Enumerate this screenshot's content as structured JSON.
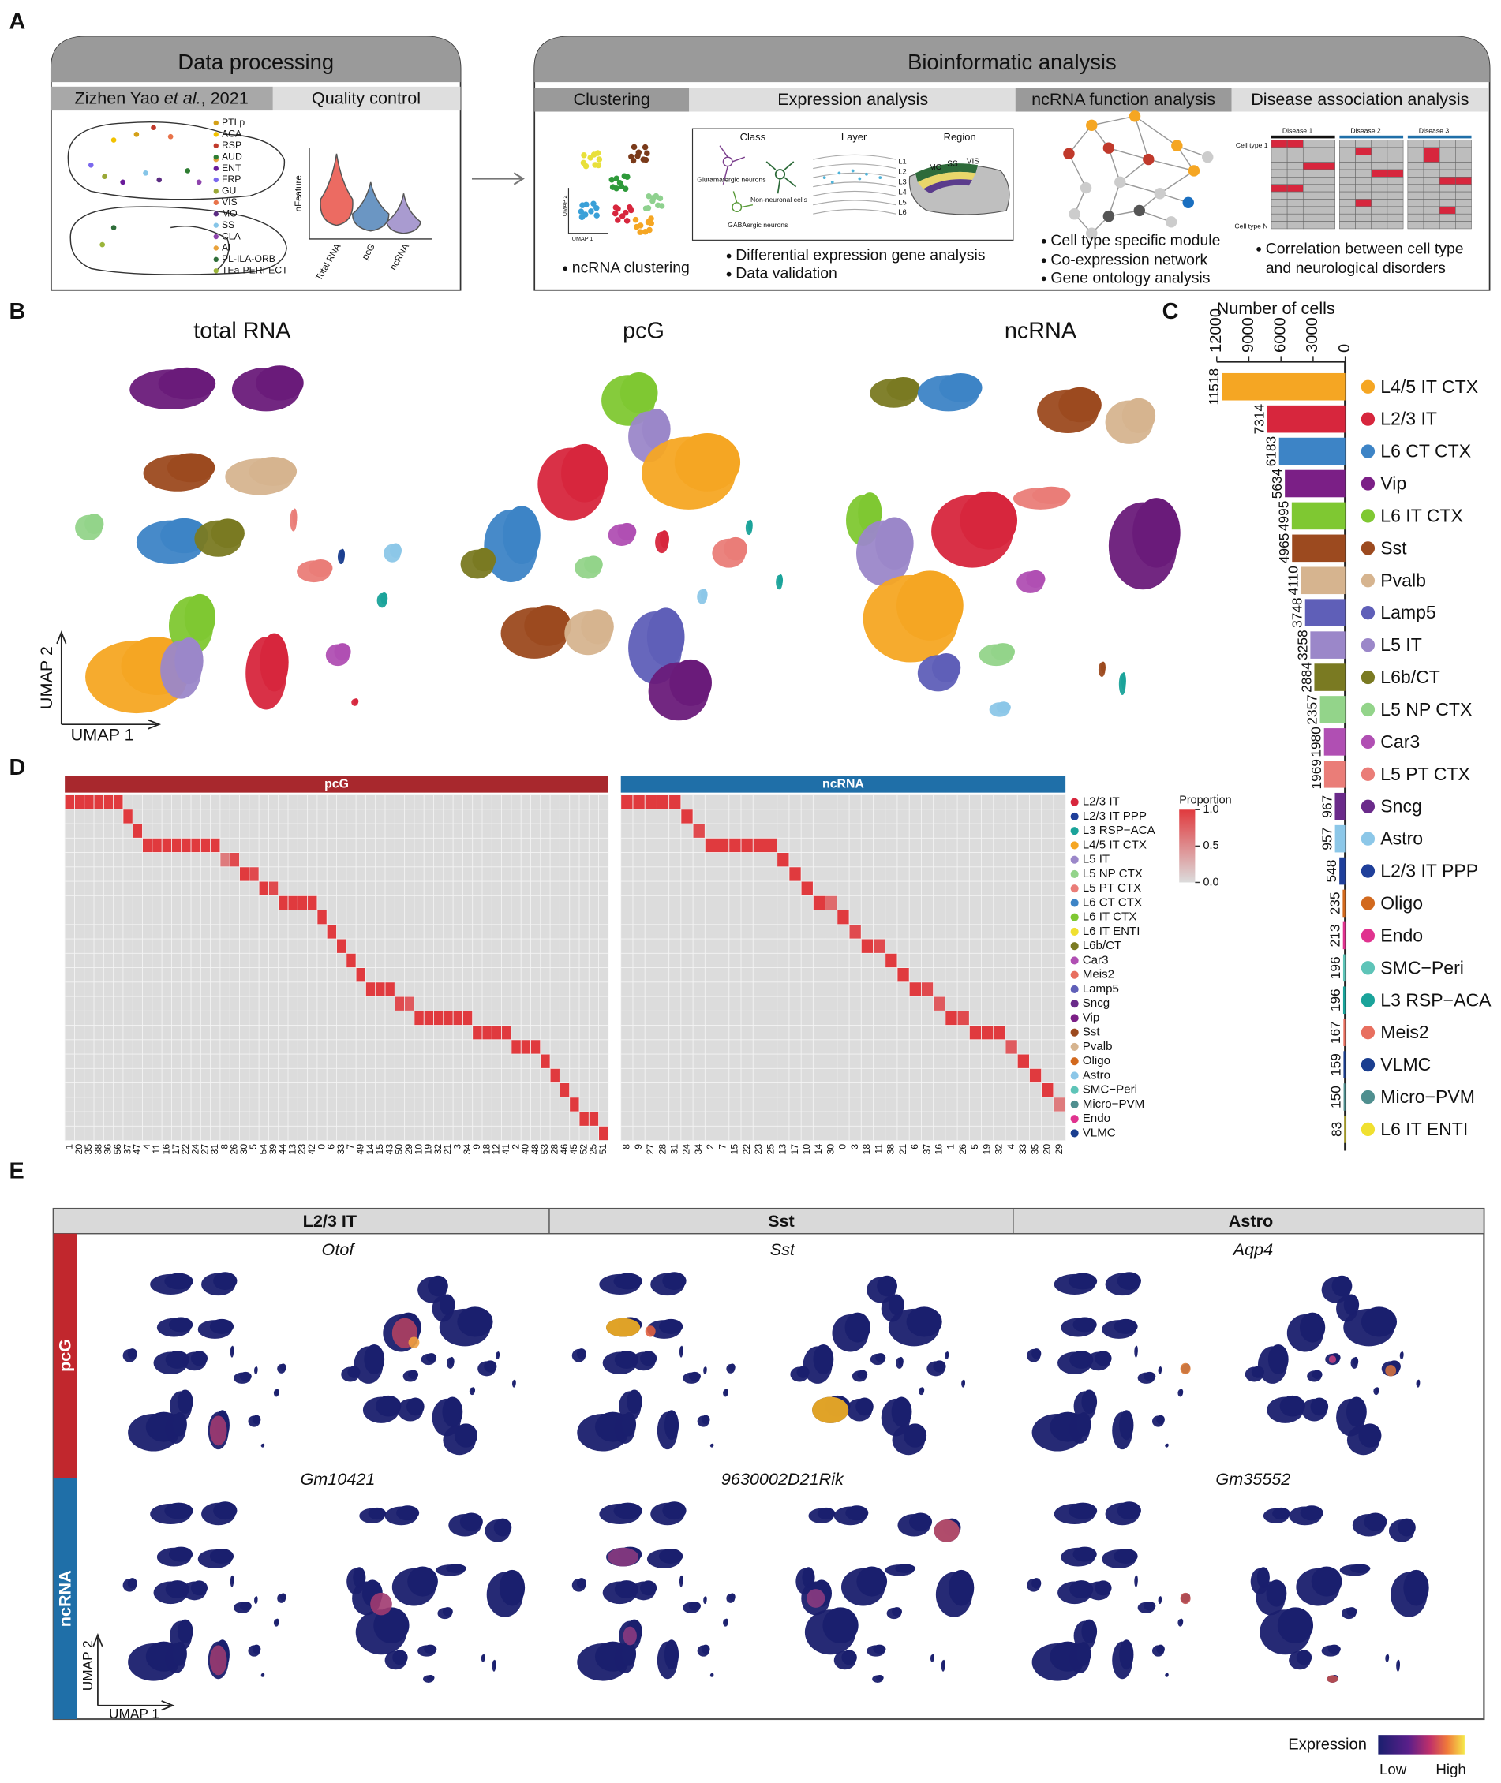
{
  "panel_labels": [
    "A",
    "B",
    "C",
    "D",
    "E"
  ],
  "panel_a": {
    "data_processing": {
      "title": "Data processing",
      "source": [
        "Zizhen Yao ",
        "et al.",
        ", 2021"
      ],
      "qc": "Quality control",
      "regions": [
        "PTLp",
        "ACA",
        "RSP",
        "AUD",
        "ENT",
        "FRP",
        "GU",
        "VIS",
        "MO",
        "SS",
        "CLA",
        "AI",
        "PL-ILA-ORB",
        "TEa-PERI-ECT"
      ],
      "region_colors": [
        "#d4a017",
        "#f2c200",
        "#c0392b",
        "#2e7d32",
        "#6a1b9a",
        "#7b68ee",
        "#9aa836",
        "#e8734a",
        "#5b2c83",
        "#86c5e8",
        "#8e44ad",
        "#e9a23b",
        "#2f6e3a",
        "#9bb53a"
      ],
      "violin_ylabel": "nFeature",
      "violin_labels": [
        "Total RNA",
        "pcG",
        "ncRNA"
      ]
    },
    "bioinformatic": {
      "title": "Bioinformatic analysis",
      "sections": [
        "Clustering",
        "Expression analysis",
        "ncRNA function analysis",
        "Disease association analysis"
      ],
      "umap_labels": [
        "UMAP 2",
        "UMAP 1"
      ],
      "clustering_notes": [
        "ncRNA clustering"
      ],
      "expression_headers": [
        "Class",
        "Layer",
        "Region"
      ],
      "expression_items": [
        "Glutamatergic neurons",
        "Non-neuronal cells",
        "GABAergic neurons"
      ],
      "layers": [
        "L1",
        "L2",
        "L3",
        "L4",
        "L5",
        "L6"
      ],
      "regions": [
        "MO",
        "SS",
        "VIS"
      ],
      "expression_notes": [
        "Differential expression gene analysis",
        "Data validation"
      ],
      "function_notes": [
        "Cell type specific module",
        "Co-expression network",
        "Gene ontology analysis"
      ],
      "diseases": [
        "Disease 1",
        "Disease 2",
        "Disease 3"
      ],
      "cell_types": [
        "Cell type 1",
        "Cell type N"
      ],
      "disease_notes": [
        "Correlation between cell type and neurological disorders"
      ]
    }
  },
  "panel_b": {
    "titles": [
      "total RNA",
      "pcG",
      "ncRNA"
    ],
    "umap_y": "UMAP 2",
    "umap_x": "UMAP 1"
  },
  "chart_data": {
    "type": "bar",
    "orientation": "horizontal",
    "title": "Number of cells",
    "categories": [
      "L4/5 IT CTX",
      "L2/3 IT",
      "L6 CT CTX",
      "Vip",
      "L6 IT CTX",
      "Sst",
      "Pvalb",
      "Lamp5",
      "L5 IT",
      "L6b/CT",
      "L5 NP CTX",
      "Car3",
      "L5 PT CTX",
      "Sncg",
      "Astro",
      "L2/3 IT PPP",
      "Oligo",
      "Endo",
      "SMC−Peri",
      "L3 RSP−ACA",
      "Meis2",
      "VLMC",
      "Micro−PVM",
      "L6 IT ENTI"
    ],
    "values": [
      11518,
      7314,
      6183,
      5634,
      4995,
      4965,
      4110,
      3748,
      3258,
      2884,
      2357,
      1980,
      1969,
      967,
      957,
      548,
      235,
      213,
      196,
      196,
      167,
      159,
      150,
      83
    ],
    "colors": [
      "#f5a623",
      "#d7263d",
      "#3d84c6",
      "#7b1f86",
      "#7fc832",
      "#9c4a1f",
      "#d6b48f",
      "#5f5fb8",
      "#9b87c9",
      "#7a7a22",
      "#93d48a",
      "#b04fb3",
      "#ea7d78",
      "#6a2a8a",
      "#8cc7e8",
      "#1f3f9a",
      "#d2691e",
      "#e0338f",
      "#5ec4b8",
      "#1aa39a",
      "#e86f5f",
      "#1a3e8f",
      "#4f8f8f",
      "#f0e030"
    ],
    "xlim": [
      12000,
      0
    ],
    "xticks": [
      12000,
      9000,
      6000,
      3000,
      0
    ],
    "legend": "right"
  },
  "panel_d": {
    "rows": [
      "L2/3 IT",
      "L2/3 IT PPP",
      "L3 RSP−ACA",
      "L4/5 IT CTX",
      "L5 IT",
      "L5 NP CTX",
      "L5 PT CTX",
      "L6 CT CTX",
      "L6 IT CTX",
      "L6 IT ENTI",
      "L6b/CT",
      "Car3",
      "Meis2",
      "Lamp5",
      "Sncg",
      "Vip",
      "Sst",
      "Pvalb",
      "Oligo",
      "Astro",
      "SMC−Peri",
      "Micro−PVM",
      "Endo",
      "VLMC"
    ],
    "row_colors": [
      "#d7263d",
      "#1f3f9a",
      "#1aa39a",
      "#f5a623",
      "#9b87c9",
      "#93d48a",
      "#ea7d78",
      "#3d84c6",
      "#7fc832",
      "#f0e030",
      "#7a7a22",
      "#b04fb3",
      "#e86f5f",
      "#5f5fb8",
      "#6a2a8a",
      "#7b1f86",
      "#9c4a1f",
      "#d6b48f",
      "#d2691e",
      "#8cc7e8",
      "#5ec4b8",
      "#4f8f8f",
      "#e0338f",
      "#1a3e8f"
    ],
    "pcG": {
      "title": "pcG",
      "color": "#a8282d",
      "columns": [
        "1",
        "20",
        "35",
        "38",
        "36",
        "56",
        "37",
        "47",
        "4",
        "11",
        "16",
        "17",
        "22",
        "24",
        "27",
        "31",
        "8",
        "26",
        "30",
        "5",
        "54",
        "39",
        "44",
        "13",
        "23",
        "42",
        "0",
        "6",
        "33",
        "7",
        "49",
        "14",
        "15",
        "43",
        "50",
        "29",
        "10",
        "19",
        "32",
        "21",
        "3",
        "34",
        "9",
        "18",
        "12",
        "41",
        "2",
        "40",
        "48",
        "53",
        "28",
        "46",
        "45",
        "52",
        "25",
        "51"
      ],
      "peak_rows": [
        "L2/3 IT",
        "L2/3 IT",
        "L2/3 IT",
        "L2/3 IT",
        "L2/3 IT",
        "L2/3 IT",
        "L2/3 IT PPP",
        "L3 RSP−ACA",
        "L4/5 IT CTX",
        "L4/5 IT CTX",
        "L4/5 IT CTX",
        "L4/5 IT CTX",
        "L4/5 IT CTX",
        "L4/5 IT CTX",
        "L4/5 IT CTX",
        "L4/5 IT CTX",
        "L5 IT",
        "L5 IT",
        "L5 NP CTX",
        "L5 NP CTX",
        "L5 PT CTX",
        "L5 PT CTX",
        "L6 CT CTX",
        "L6 CT CTX",
        "L6 CT CTX",
        "L6 CT CTX",
        "L6 IT CTX",
        "L6 IT ENTI",
        "L6b/CT",
        "Car3",
        "Meis2",
        "Lamp5",
        "Lamp5",
        "Lamp5",
        "Sncg",
        "Sncg",
        "Vip",
        "Vip",
        "Vip",
        "Vip",
        "Vip",
        "Vip",
        "Sst",
        "Sst",
        "Sst",
        "Sst",
        "Pvalb",
        "Pvalb",
        "Pvalb",
        "Oligo",
        "Astro",
        "SMC−Peri",
        "Micro−PVM",
        "Endo",
        "Endo",
        "VLMC"
      ],
      "peak_values": [
        1.0,
        1.0,
        1.0,
        1.0,
        1.0,
        1.0,
        1.0,
        1.0,
        1.0,
        1.0,
        1.0,
        1.0,
        1.0,
        1.0,
        1.0,
        1.0,
        0.6,
        0.9,
        1.0,
        0.9,
        1.0,
        0.9,
        1.0,
        1.0,
        1.0,
        1.0,
        1.0,
        1.0,
        1.0,
        1.0,
        1.0,
        1.0,
        1.0,
        1.0,
        0.9,
        0.8,
        1.0,
        1.0,
        1.0,
        1.0,
        1.0,
        1.0,
        1.0,
        1.0,
        1.0,
        1.0,
        1.0,
        1.0,
        1.0,
        1.0,
        1.0,
        1.0,
        1.0,
        1.0,
        1.0,
        1.0
      ]
    },
    "ncRNA": {
      "title": "ncRNA",
      "color": "#1f6fa8",
      "columns": [
        "8",
        "9",
        "27",
        "28",
        "31",
        "24",
        "34",
        "2",
        "7",
        "15",
        "22",
        "23",
        "25",
        "13",
        "17",
        "10",
        "14",
        "30",
        "0",
        "3",
        "18",
        "11",
        "38",
        "21",
        "6",
        "37",
        "16",
        "1",
        "26",
        "5",
        "19",
        "32",
        "4",
        "33",
        "35",
        "20",
        "29"
      ],
      "peak_rows": [
        "L2/3 IT",
        "L2/3 IT",
        "L2/3 IT",
        "L2/3 IT",
        "L2/3 IT",
        "L2/3 IT PPP",
        "L3 RSP−ACA",
        "L4/5 IT CTX",
        "L4/5 IT CTX",
        "L4/5 IT CTX",
        "L4/5 IT CTX",
        "L4/5 IT CTX",
        "L4/5 IT CTX",
        "L5 IT",
        "L5 NP CTX",
        "L5 PT CTX",
        "L6 CT CTX",
        "L6 CT CTX",
        "L6 IT CTX",
        "L6 IT ENTI",
        "L6b/CT",
        "L6b/CT",
        "Car3",
        "Meis2",
        "Lamp5",
        "Lamp5",
        "Sncg",
        "Vip",
        "Vip",
        "Sst",
        "Sst",
        "Sst",
        "Pvalb",
        "Oligo",
        "Astro",
        "SMC−Peri",
        "Micro−PVM"
      ],
      "peak_values": [
        1.0,
        1.0,
        1.0,
        1.0,
        1.0,
        1.0,
        0.9,
        1.0,
        1.0,
        1.0,
        1.0,
        1.0,
        1.0,
        1.0,
        1.0,
        1.0,
        1.0,
        0.7,
        1.0,
        0.9,
        1.0,
        0.9,
        1.0,
        1.0,
        1.0,
        0.9,
        0.8,
        1.0,
        0.9,
        1.0,
        1.0,
        1.0,
        0.8,
        1.0,
        1.0,
        1.0,
        0.6
      ]
    },
    "legend": {
      "title": "Proportion",
      "ticks": [
        {
          "value": 1,
          "label": "1.0"
        },
        {
          "value": 0.5,
          "label": "0.5"
        },
        {
          "value": 0,
          "label": "0.0"
        }
      ],
      "low_color": "#dcdcdc",
      "high_color": "#e03a3e"
    }
  },
  "panel_e": {
    "columns": [
      "L2/3 IT",
      "Sst",
      "Astro"
    ],
    "rows": [
      "pcG",
      "ncRNA"
    ],
    "genes": [
      [
        "Otof",
        "Sst",
        "Aqp4"
      ],
      [
        "Gm10421",
        "9630002D21Rik",
        "Gm35552"
      ]
    ],
    "umap_y": "UMAP 2",
    "umap_x": "UMAP 1",
    "legend": {
      "title": "Expression",
      "low": "Low",
      "high": "High"
    }
  }
}
